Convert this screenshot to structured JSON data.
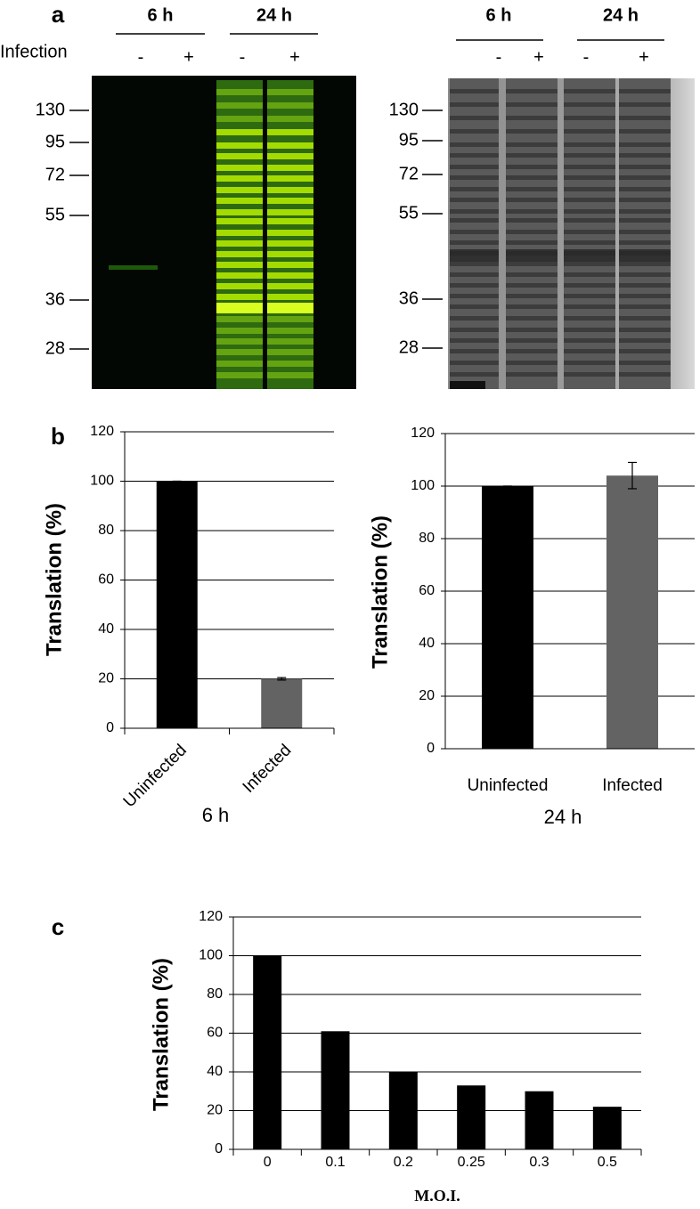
{
  "panel_labels": [
    "a",
    "b",
    "c"
  ],
  "gels": [
    {
      "time_labels": [
        "6 h",
        "24 h"
      ],
      "row_label": "Infection",
      "lanes": [
        "-",
        "+",
        "-",
        "+"
      ],
      "markers": [
        "130",
        "95",
        "72",
        "55",
        "36",
        "28"
      ]
    },
    {
      "time_labels": [
        "6 h",
        "24 h"
      ],
      "lanes": [
        "-",
        "+",
        "-",
        "+"
      ],
      "markers": [
        "130",
        "95",
        "72",
        "55",
        "36",
        "28"
      ]
    }
  ],
  "chart_data": [
    {
      "type": "bar",
      "categories": [
        "Uninfected",
        "Infected"
      ],
      "values": [
        100,
        20
      ],
      "errors": [
        0,
        0.5
      ],
      "colors": [
        "#000000",
        "#636363"
      ],
      "ylabel": "Translation (%)",
      "xlabel": "6 h",
      "ylim": [
        0,
        120
      ],
      "yticks": [
        0,
        20,
        40,
        60,
        80,
        100,
        120
      ],
      "grid": true
    },
    {
      "type": "bar",
      "categories": [
        "Uninfected",
        "Infected"
      ],
      "values": [
        100,
        104
      ],
      "errors": [
        0,
        5
      ],
      "colors": [
        "#000000",
        "#636363"
      ],
      "ylabel": "Translation (%)",
      "xlabel": "24 h",
      "ylim": [
        0,
        120
      ],
      "yticks": [
        0,
        20,
        40,
        60,
        80,
        100,
        120
      ],
      "grid": true
    },
    {
      "type": "bar",
      "categories": [
        "0",
        "0.1",
        "0.2",
        "0.25",
        "0.3",
        "0.5"
      ],
      "values": [
        100,
        61,
        40,
        33,
        30,
        22
      ],
      "colors": [
        "#000000",
        "#000000",
        "#000000",
        "#000000",
        "#000000",
        "#000000"
      ],
      "ylabel": "Translation (%)",
      "xlabel": "M.O.I.",
      "ylim": [
        0,
        120
      ],
      "yticks": [
        0,
        20,
        40,
        60,
        80,
        100,
        120
      ],
      "grid": true
    }
  ]
}
